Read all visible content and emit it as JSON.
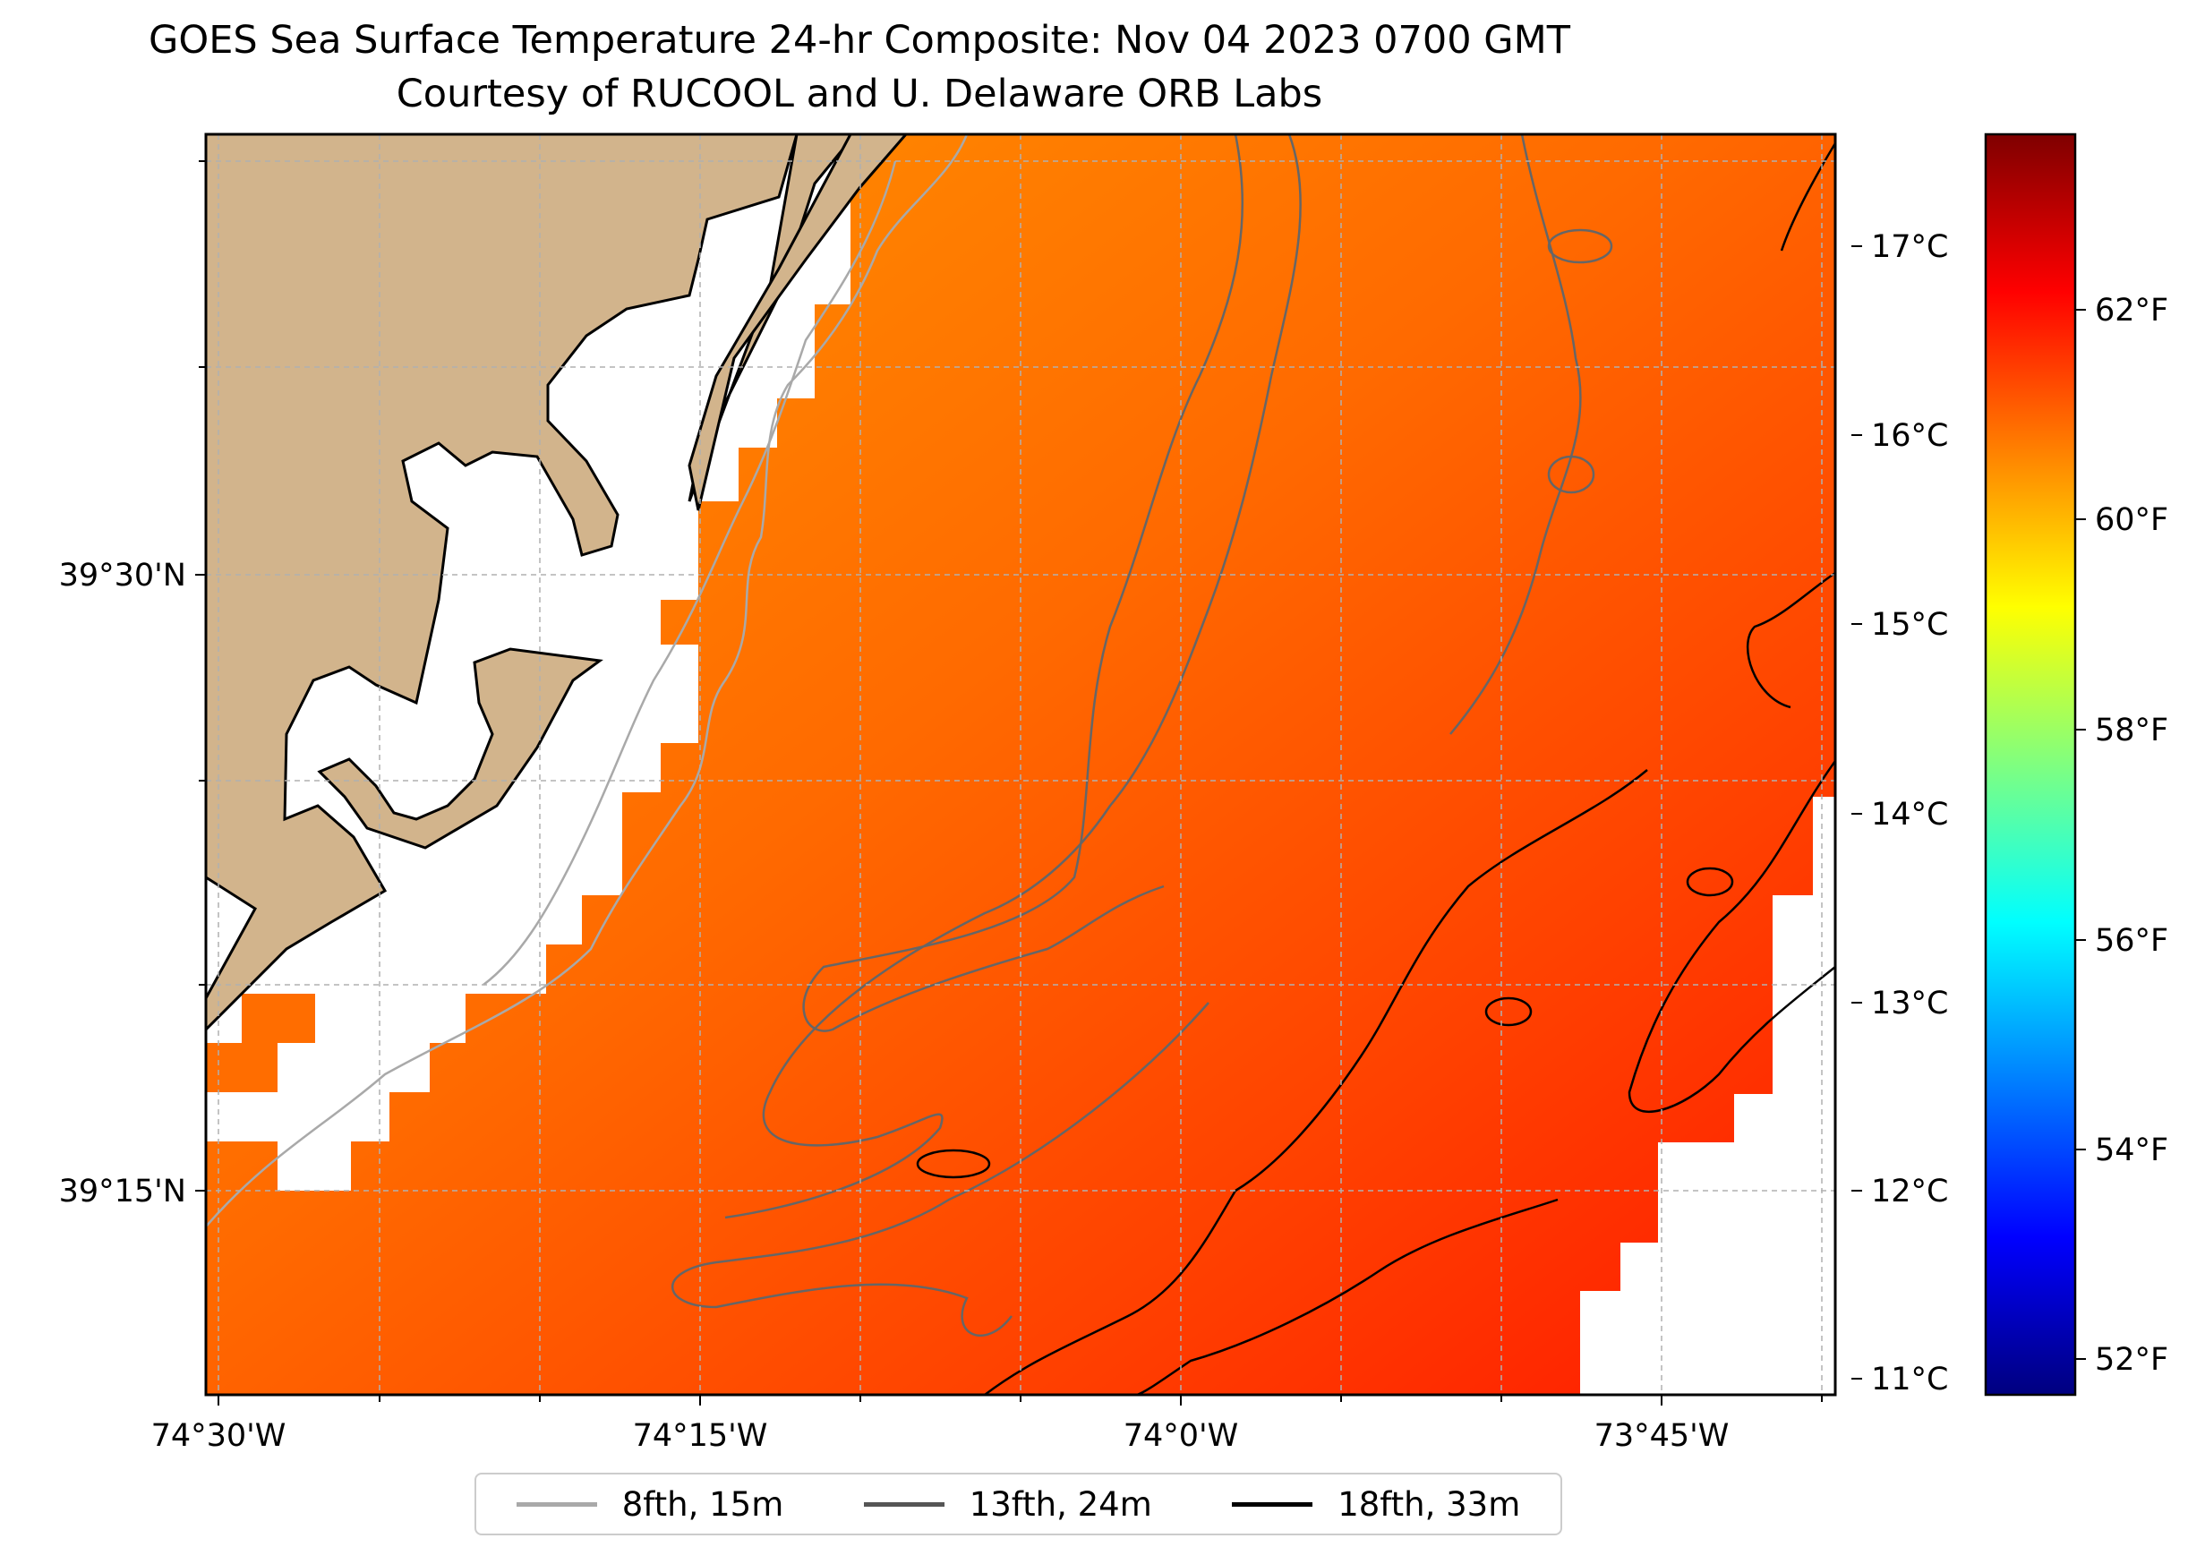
{
  "title": {
    "line1": "GOES Sea Surface Temperature 24-hr Composite: Nov 04 2023 0700 GMT",
    "line2": "Courtesy of RUCOOL and U. Delaware ORB Labs"
  },
  "map": {
    "lon_ticks": [
      "74°30'W",
      "74°15'W",
      "74°0'W",
      "73°45'W"
    ],
    "lat_ticks": [
      "39°30'N",
      "39°15'N"
    ],
    "land_color": "#d2b48c",
    "nodata_color": "#ffffff"
  },
  "colorbar": {
    "celsius_ticks": [
      "11°C",
      "12°C",
      "13°C",
      "14°C",
      "15°C",
      "16°C",
      "17°C"
    ],
    "fahrenheit_ticks": [
      "52°F",
      "54°F",
      "56°F",
      "58°F",
      "60°F",
      "62°F"
    ],
    "colormap": "jet",
    "range_celsius": [
      10.9,
      17.6
    ]
  },
  "legend": {
    "items": [
      {
        "label": "8fth, 15m",
        "color": "#a9a9a9"
      },
      {
        "label": "13fth, 24m",
        "color": "#555555"
      },
      {
        "label": "18fth, 33m",
        "color": "#000000"
      }
    ]
  }
}
